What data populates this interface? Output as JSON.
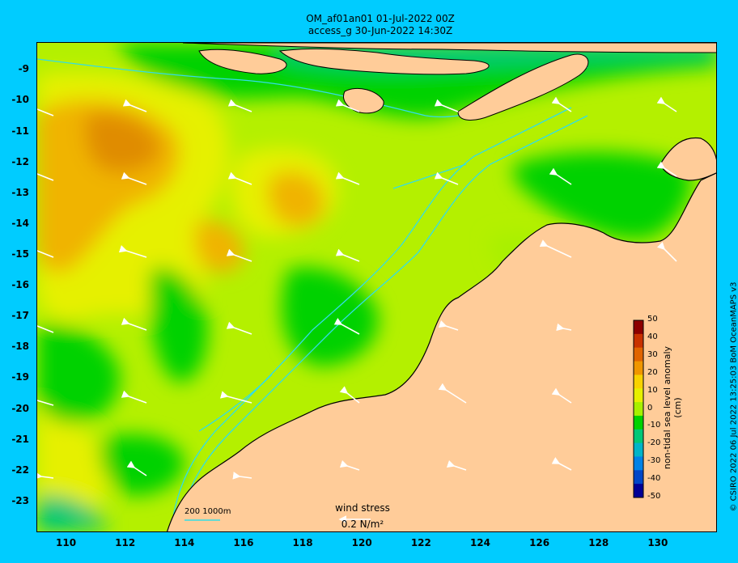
{
  "title_line1": "OM_af01an01 01-Jul-2022 00Z",
  "title_line2": "access_g 30-Jun-2022 14:30Z",
  "axes": {
    "lon_ticks": [
      "110",
      "112",
      "114",
      "116",
      "118",
      "120",
      "122",
      "124",
      "126",
      "128",
      "130"
    ],
    "lat_ticks": [
      "-9",
      "-10",
      "-11",
      "-12",
      "-13",
      "-14",
      "-15",
      "-16",
      "-17",
      "-18",
      "-19",
      "-20",
      "-21",
      "-22",
      "-23"
    ],
    "lon_range": [
      109.0,
      132.0
    ],
    "lat_range": [
      -24.0,
      -8.1
    ]
  },
  "colorbar": {
    "title": "non-tidal sea level anomaly (cm)",
    "tick_labels": [
      "50",
      "40",
      "30",
      "20",
      "10",
      "0",
      "-10",
      "-20",
      "-30",
      "-40",
      "-50"
    ],
    "range": [
      -50,
      50
    ],
    "colors": [
      "#8c0000",
      "#c83200",
      "#e06400",
      "#f09600",
      "#f8d200",
      "#e6f000",
      "#a8f000",
      "#00d200",
      "#00c878",
      "#00b4c8",
      "#0082e6",
      "#0046c8",
      "#000096"
    ]
  },
  "land_color": "#ffcc99",
  "sea_bg_color": "#b4f000",
  "scale_label": "200  1000m",
  "wind": {
    "title": "wind stress",
    "value_label": "0.2 N/m²"
  },
  "credit": "© CSIRO 2022  06 Jul 2022 13:25:03 BoM OceanMAPS v3"
}
